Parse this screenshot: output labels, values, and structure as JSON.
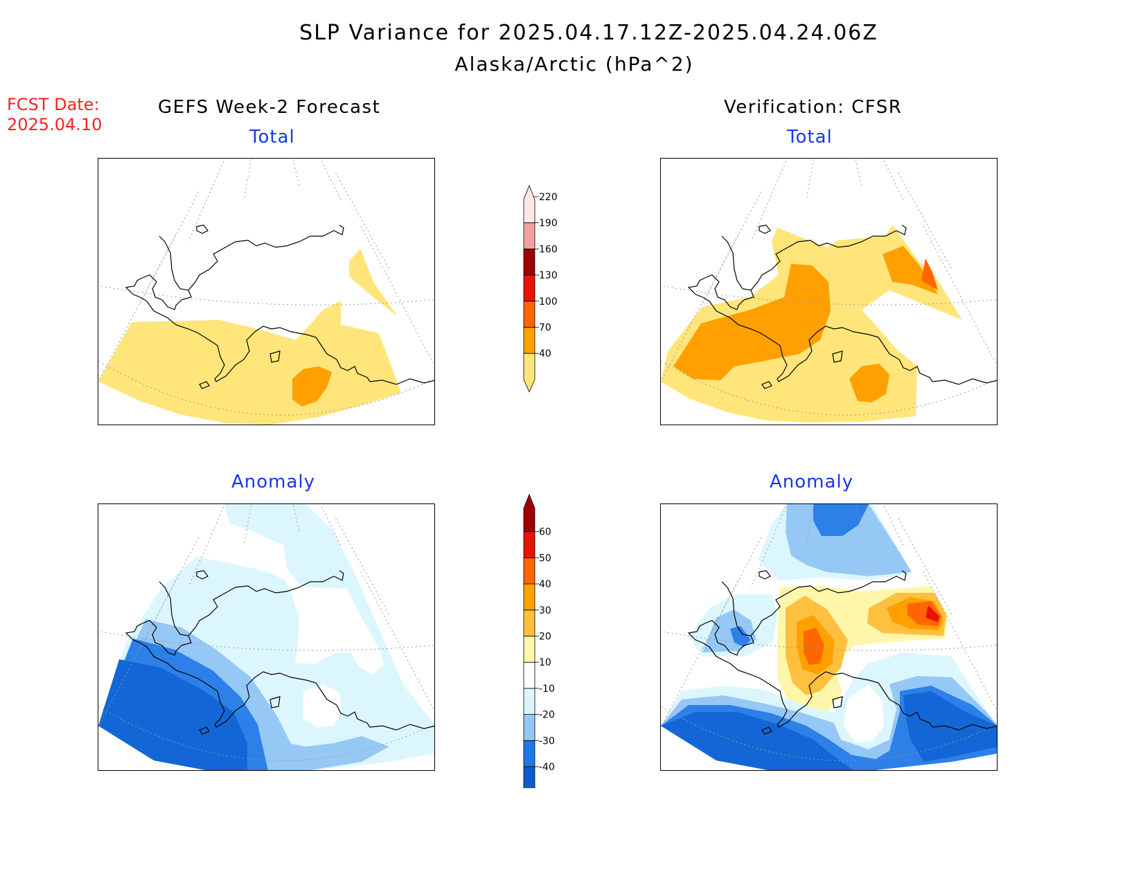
{
  "title": "SLP Variance for 2025.04.17.12Z-2025.04.24.06Z",
  "subtitle": "Alaska/Arctic (hPa^2)",
  "fcst": {
    "line1": "FCST Date:",
    "line2": "2025.04.10"
  },
  "columns": {
    "left": "GEFS Week-2 Forecast",
    "right": "Verification: CFSR"
  },
  "panels": {
    "total_left": "Total",
    "total_right": "Total",
    "anomaly_left": "Anomaly",
    "anomaly_right": "Anomaly"
  },
  "colorbar_total": {
    "levels": [
      "40",
      "70",
      "100",
      "130",
      "160",
      "190",
      "220"
    ],
    "colors": [
      "#ffe57a",
      "#ffa000",
      "#ff6600",
      "#e61400",
      "#a00000",
      "#f4a0a0",
      "#fde8e8"
    ]
  },
  "colorbar_anomaly": {
    "levels": [
      "-40",
      "-30",
      "-20",
      "-10",
      "10",
      "20",
      "30",
      "40",
      "50",
      "60"
    ],
    "colors": [
      "#0a5ad2",
      "#1e78e6",
      "#96c8f5",
      "#dcf5fd",
      "#ffffff",
      "#fff6aa",
      "#ffc040",
      "#ffa000",
      "#ff6600",
      "#e61400",
      "#a00000"
    ]
  },
  "palette": {
    "yellow": "#ffe57a",
    "orange": "#ffa000",
    "red_orange": "#ff6600",
    "red": "#e61400",
    "blue_dark": "#1466d6",
    "blue_mid": "#2c80e8",
    "blue_light": "#96c8f5",
    "blue_pale": "#dcf6fd",
    "lt_yellow": "#fff6aa",
    "lt_orange": "#ffc040"
  }
}
